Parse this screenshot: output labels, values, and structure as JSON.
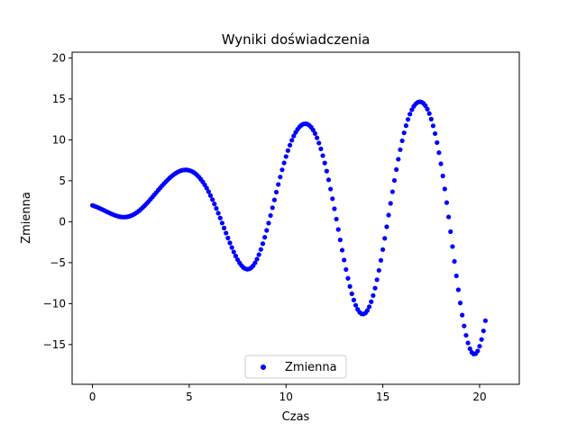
{
  "chart_data": {
    "type": "scatter",
    "title": "Wyniki doświadczenia",
    "xlabel": "Czas",
    "ylabel": "Zmienna",
    "xlim": [
      -1.05,
      22.05
    ],
    "ylim": [
      -19.85,
      20.7
    ],
    "xticks": [
      0,
      5,
      10,
      15,
      20
    ],
    "yticks": [
      -15,
      -10,
      -5,
      0,
      5,
      10,
      15,
      20
    ],
    "xtick_labels": [
      "0",
      "5",
      "10",
      "15",
      "20"
    ],
    "ytick_labels": [
      "−15",
      "−10",
      "−5",
      "0",
      "5",
      "10",
      "15",
      "20"
    ],
    "grid": false,
    "legend_position": "lower center",
    "series": [
      {
        "name": "Zmienna",
        "color": "#0000ff",
        "marker": "circle",
        "x_start": 0,
        "x_step": 0.1,
        "y": [
          2.0,
          1.91,
          1.82,
          1.72,
          1.61,
          1.5,
          1.39,
          1.27,
          1.16,
          1.05,
          0.94,
          0.84,
          0.75,
          0.68,
          0.62,
          0.58,
          0.57,
          0.57,
          0.6,
          0.66,
          0.74,
          0.85,
          0.98,
          1.14,
          1.32,
          1.52,
          1.74,
          1.97,
          2.22,
          2.48,
          2.75,
          3.02,
          3.3,
          3.58,
          3.86,
          4.13,
          4.4,
          4.66,
          4.91,
          5.14,
          5.37,
          5.57,
          5.76,
          5.92,
          6.06,
          6.17,
          6.26,
          6.31,
          6.33,
          6.32,
          6.27,
          6.19,
          6.07,
          5.91,
          5.7,
          5.46,
          5.18,
          4.86,
          4.5,
          4.1,
          3.67,
          3.2,
          2.7,
          2.17,
          1.62,
          1.04,
          0.45,
          -0.16,
          -0.77,
          -1.38,
          -1.99,
          -2.58,
          -3.15,
          -3.69,
          -4.19,
          -4.64,
          -5.03,
          -5.35,
          -5.59,
          -5.75,
          -5.8,
          -5.76,
          -5.62,
          -5.37,
          -5.02,
          -4.57,
          -4.02,
          -3.39,
          -2.68,
          -1.9,
          -1.06,
          -0.17,
          0.76,
          1.71,
          2.66,
          3.61,
          4.55,
          5.46,
          6.34,
          7.18,
          7.96,
          8.69,
          9.35,
          9.95,
          10.47,
          10.92,
          11.29,
          11.59,
          11.8,
          11.93,
          11.97,
          11.92,
          11.78,
          11.54,
          11.2,
          10.77,
          10.24,
          9.61,
          8.89,
          8.07,
          7.17,
          6.18,
          5.12,
          3.99,
          2.81,
          1.58,
          0.32,
          -0.95,
          -2.22,
          -3.47,
          -4.68,
          -5.83,
          -6.91,
          -7.9,
          -8.79,
          -9.56,
          -10.2,
          -10.7,
          -11.05,
          -11.24,
          -11.27,
          -11.14,
          -10.84,
          -10.38,
          -9.77,
          -9.01,
          -8.11,
          -7.08,
          -5.94,
          -4.71,
          -3.4,
          -2.03,
          -0.62,
          0.81,
          2.24,
          3.66,
          5.04,
          6.37,
          7.63,
          8.8,
          9.88,
          10.86,
          11.73,
          12.49,
          13.14,
          13.67,
          14.09,
          14.39,
          14.58,
          14.65,
          14.61,
          14.45,
          14.16,
          13.75,
          13.21,
          12.53,
          11.71,
          10.76,
          9.66,
          8.43,
          7.07,
          5.59,
          4.0,
          2.33,
          0.58,
          -1.21,
          -3.03,
          -4.84,
          -6.61,
          -8.31,
          -9.92,
          -11.4,
          -12.73,
          -13.87,
          -14.8,
          -15.5,
          -15.96,
          -16.16,
          -16.1,
          -15.78,
          -15.2,
          -14.38,
          -13.33,
          -12.08
        ]
      }
    ],
    "legend": [
      {
        "name": "Zmienna",
        "color": "#0000ff"
      }
    ]
  }
}
